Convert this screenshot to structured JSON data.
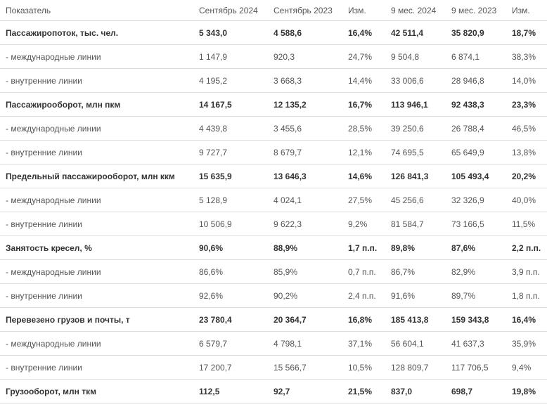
{
  "table": {
    "headers": [
      "Показатель",
      "Сентябрь 2024",
      "Сентябрь 2023",
      "Изм.",
      "9 мес. 2024",
      "9 мес. 2023",
      "Изм."
    ],
    "rows": [
      {
        "bold": true,
        "cells": [
          "Пассажиропоток, тыс. чел.",
          "5 343,0",
          "4 588,6",
          "16,4%",
          "42 511,4",
          "35 820,9",
          "18,7%"
        ]
      },
      {
        "bold": false,
        "cells": [
          "- международные линии",
          "1 147,9",
          "920,3",
          "24,7%",
          "9 504,8",
          "6 874,1",
          "38,3%"
        ]
      },
      {
        "bold": false,
        "cells": [
          "- внутренние линии",
          "4 195,2",
          "3 668,3",
          "14,4%",
          "33 006,6",
          "28 946,8",
          "14,0%"
        ]
      },
      {
        "bold": true,
        "cells": [
          "Пассажирооборот, млн пкм",
          "14 167,5",
          "12 135,2",
          "16,7%",
          "113 946,1",
          "92 438,3",
          "23,3%"
        ]
      },
      {
        "bold": false,
        "cells": [
          "- международные линии",
          "4 439,8",
          "3 455,6",
          "28,5%",
          "39 250,6",
          "26 788,4",
          "46,5%"
        ]
      },
      {
        "bold": false,
        "cells": [
          "- внутренние линии",
          "9 727,7",
          "8 679,7",
          "12,1%",
          "74 695,5",
          "65 649,9",
          "13,8%"
        ]
      },
      {
        "bold": true,
        "cells": [
          "Предельный пассажирооборот, млн ккм",
          "15 635,9",
          "13 646,3",
          "14,6%",
          "126 841,3",
          "105 493,4",
          "20,2%"
        ]
      },
      {
        "bold": false,
        "cells": [
          "- международные линии",
          "5 128,9",
          "4 024,1",
          "27,5%",
          "45 256,6",
          "32 326,9",
          "40,0%"
        ]
      },
      {
        "bold": false,
        "cells": [
          "- внутренние линии",
          "10 506,9",
          "9 622,3",
          "9,2%",
          "81 584,7",
          "73 166,5",
          "11,5%"
        ]
      },
      {
        "bold": true,
        "cells": [
          "Занятость кресел, %",
          "90,6%",
          "88,9%",
          "1,7 п.п.",
          "89,8%",
          "87,6%",
          "2,2 п.п."
        ]
      },
      {
        "bold": false,
        "cells": [
          "- международные линии",
          "86,6%",
          "85,9%",
          "0,7 п.п.",
          "86,7%",
          "82,9%",
          "3,9 п.п."
        ]
      },
      {
        "bold": false,
        "cells": [
          "- внутренние линии",
          "92,6%",
          "90,2%",
          "2,4 п.п.",
          "91,6%",
          "89,7%",
          "1,8 п.п."
        ]
      },
      {
        "bold": true,
        "cells": [
          "Перевезено грузов и почты, т",
          "23 780,4",
          "20 364,7",
          "16,8%",
          "185 413,8",
          "159 343,8",
          "16,4%"
        ]
      },
      {
        "bold": false,
        "cells": [
          "- международные линии",
          "6 579,7",
          "4 798,1",
          "37,1%",
          "56 604,1",
          "41 637,3",
          "35,9%"
        ]
      },
      {
        "bold": false,
        "cells": [
          "- внутренние линии",
          "17 200,7",
          "15 566,7",
          "10,5%",
          "128 809,7",
          "117 706,5",
          "9,4%"
        ]
      },
      {
        "bold": true,
        "cells": [
          "Грузооборот, млн ткм",
          "112,5",
          "92,7",
          "21,5%",
          "837,0",
          "698,7",
          "19,8%"
        ]
      }
    ]
  }
}
